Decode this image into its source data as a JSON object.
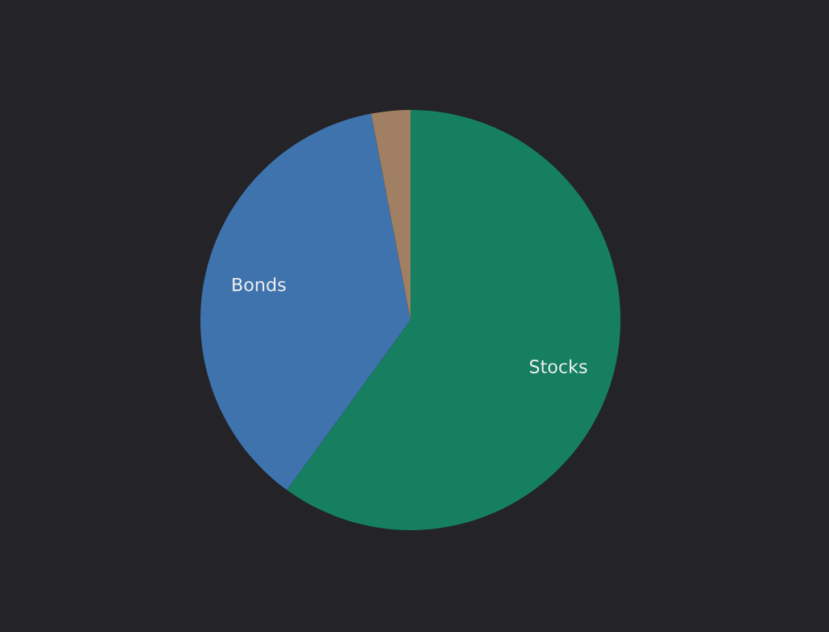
{
  "chart_data": {
    "type": "pie",
    "categories": [
      "Stocks",
      "Bonds",
      null
    ],
    "values": [
      60,
      37,
      3
    ],
    "colors": [
      "#167f5f",
      "#3f73ad",
      "#a07f62"
    ]
  }
}
